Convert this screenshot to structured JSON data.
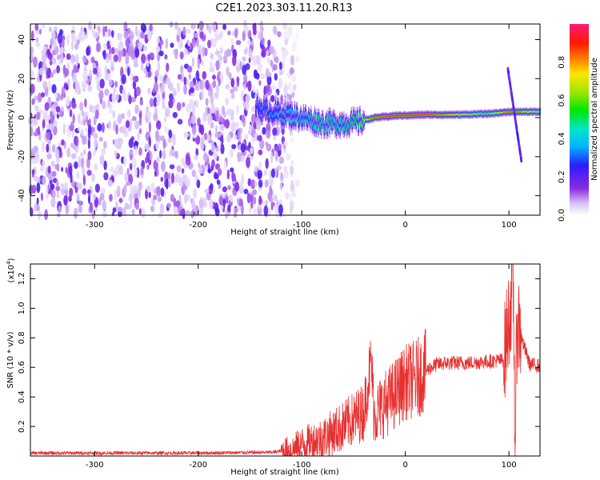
{
  "title": "C2E1.2023.303.11.20.R13",
  "colors": {
    "snr_line": "#e83030",
    "axis": "#000000",
    "background": "#ffffff"
  },
  "chart_data": [
    {
      "type": "heatmap",
      "xlabel": "Height of straight line (km)",
      "ylabel": "Frequency (Hz)",
      "xlim": [
        -362,
        130
      ],
      "ylim": [
        -50,
        48
      ],
      "x_ticks": [
        -300,
        -200,
        -100,
        0,
        100
      ],
      "x_tick_labels": [
        "-300",
        "-200",
        "-100",
        "0",
        "100"
      ],
      "y_ticks": [
        -40,
        -20,
        0,
        20,
        40
      ],
      "y_tick_labels": [
        "-40",
        "-20",
        "0",
        "20",
        "40"
      ],
      "colorbar": {
        "label": "Normalized spectral amplitude",
        "range": [
          0,
          1
        ],
        "ticks": [
          0.0,
          0.2,
          0.4,
          0.6,
          0.8
        ],
        "tick_labels": [
          "0.0",
          "0.2",
          "0.4",
          "0.6",
          "0.8"
        ],
        "colormap": "rainbow (white-purple-blue-cyan-green-yellow-red-magenta)"
      },
      "features": {
        "noise_region_x": [
          -362,
          -118
        ],
        "main_trace": [
          {
            "x": -145,
            "y": 5,
            "amp": 0.3
          },
          {
            "x": -120,
            "y": 2,
            "amp": 0.4
          },
          {
            "x": -100,
            "y": 0,
            "amp": 0.45
          },
          {
            "x": -80,
            "y": -3,
            "amp": 0.5
          },
          {
            "x": -60,
            "y": -3,
            "amp": 0.5
          },
          {
            "x": -45,
            "y": -2,
            "amp": 0.55
          },
          {
            "x": -30,
            "y": 0,
            "amp": 0.85
          },
          {
            "x": -10,
            "y": 1,
            "amp": 0.9
          },
          {
            "x": 20,
            "y": 1.5,
            "amp": 0.9
          },
          {
            "x": 50,
            "y": 1.5,
            "amp": 0.7
          },
          {
            "x": 80,
            "y": 2,
            "amp": 0.6
          },
          {
            "x": 100,
            "y": 3,
            "amp": 0.85
          },
          {
            "x": 130,
            "y": 3,
            "amp": 0.65
          }
        ],
        "diagonal_streak": {
          "x": [
            99,
            112
          ],
          "y": [
            25,
            -22
          ]
        }
      }
    },
    {
      "type": "line",
      "xlabel": "Height of straight line (km)",
      "ylabel": "SNR (10 * v/v)",
      "y_multiplier_label": "(x10",
      "y_multiplier_exp": "4",
      "y_multiplier_close": ")",
      "xlim": [
        -362,
        130
      ],
      "ylim": [
        0,
        13000
      ],
      "x_ticks": [
        -300,
        -200,
        -100,
        0,
        100
      ],
      "x_tick_labels": [
        "-300",
        "-200",
        "-100",
        "0",
        "100"
      ],
      "y_ticks": [
        2000,
        4000,
        6000,
        8000,
        10000,
        12000
      ],
      "y_tick_labels": [
        "0.2",
        "0.4",
        "0.6",
        "0.8",
        "1.0",
        "1.2"
      ],
      "series": [
        {
          "x": [
            -362,
            -300,
            -200,
            -130,
            -110,
            -100,
            -80,
            -60,
            -50,
            -40,
            -33,
            -30,
            -20,
            -10,
            0,
            10,
            20,
            30,
            40,
            60,
            80,
            95,
            102,
            104,
            106,
            108,
            112,
            120,
            130
          ],
          "y": [
            200,
            200,
            200,
            250,
            400,
            800,
            1200,
            2000,
            2500,
            3000,
            6500,
            2800,
            3500,
            4200,
            5000,
            5200,
            5800,
            6200,
            6300,
            6300,
            6400,
            6500,
            10500,
            13000,
            500,
            9500,
            8000,
            6200,
            6100
          ]
        }
      ]
    }
  ]
}
